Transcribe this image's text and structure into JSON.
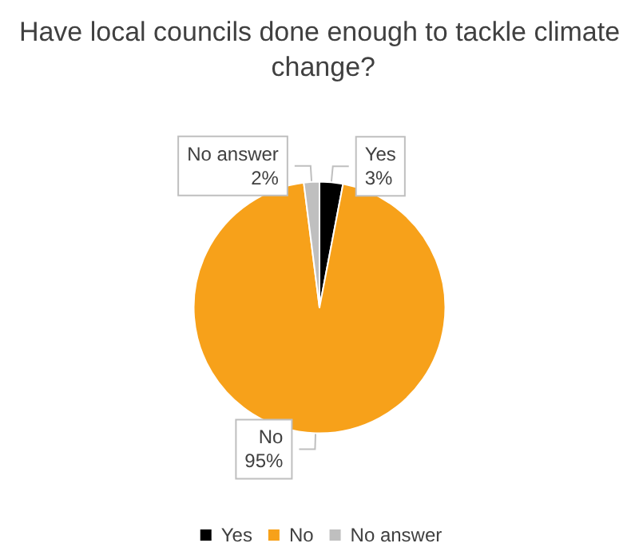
{
  "chart_data": {
    "type": "pie",
    "title": "Have local councils done enough to tackle climate change?",
    "categories": [
      "Yes",
      "No",
      "No answer"
    ],
    "values": [
      3,
      95,
      2
    ],
    "colors": [
      "#000000",
      "#f7a11a",
      "#bfbfbf"
    ],
    "value_labels": [
      "3%",
      "95%",
      "2%"
    ],
    "legend": "bottom"
  }
}
